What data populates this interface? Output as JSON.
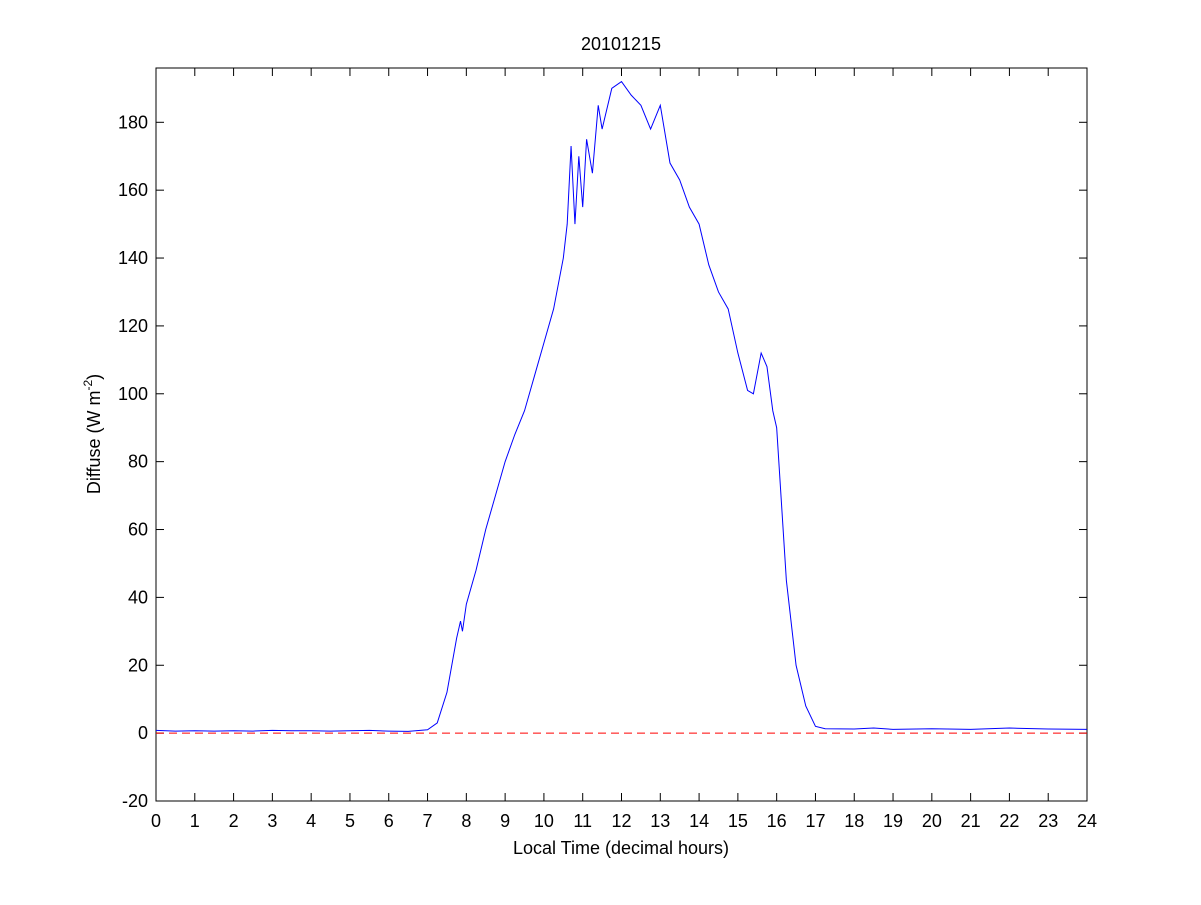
{
  "chart_data": {
    "type": "line",
    "title": "20101215",
    "xlabel": "Local Time (decimal hours)",
    "ylabel": {
      "text": "Diffuse (W m",
      "superscript": "-2",
      "suffix": ")"
    },
    "xlim": [
      0,
      24
    ],
    "ylim": [
      -20,
      196
    ],
    "xticks": [
      0,
      1,
      2,
      3,
      4,
      5,
      6,
      7,
      8,
      9,
      10,
      11,
      12,
      13,
      14,
      15,
      16,
      17,
      18,
      19,
      20,
      21,
      22,
      23,
      24
    ],
    "yticks": [
      -20,
      0,
      20,
      40,
      60,
      80,
      100,
      120,
      140,
      160,
      180
    ],
    "reference_line": {
      "value": 0,
      "color": "#ff0000",
      "style": "dashed"
    },
    "series": [
      {
        "name": "Diffuse",
        "color": "#0000ff",
        "x": [
          0,
          0.5,
          1,
          1.5,
          2,
          2.5,
          3,
          3.5,
          4,
          4.5,
          5,
          5.5,
          6,
          6.5,
          7,
          7.25,
          7.5,
          7.75,
          7.85,
          7.9,
          8,
          8.25,
          8.5,
          8.75,
          9,
          9.25,
          9.5,
          9.75,
          10,
          10.25,
          10.5,
          10.6,
          10.7,
          10.8,
          10.9,
          11,
          11.1,
          11.25,
          11.4,
          11.5,
          11.75,
          12,
          12.25,
          12.5,
          12.75,
          13,
          13.25,
          13.5,
          13.75,
          14,
          14.25,
          14.5,
          14.75,
          15,
          15.25,
          15.4,
          15.6,
          15.75,
          15.9,
          16,
          16.25,
          16.5,
          16.75,
          17,
          17.25,
          18,
          18.5,
          19,
          20,
          21,
          22,
          23,
          24
        ],
        "values": [
          0.8,
          0.6,
          0.7,
          0.6,
          0.7,
          0.6,
          0.8,
          0.7,
          0.7,
          0.6,
          0.7,
          0.8,
          0.6,
          0.5,
          1,
          3,
          12,
          28,
          33,
          30,
          38,
          48,
          60,
          70,
          80,
          88,
          95,
          105,
          115,
          125,
          140,
          150,
          173,
          150,
          170,
          155,
          175,
          165,
          185,
          178,
          190,
          192,
          188,
          185,
          178,
          185,
          168,
          163,
          155,
          150,
          138,
          130,
          125,
          112,
          101,
          100,
          112,
          108,
          95,
          90,
          45,
          20,
          8,
          2,
          1.3,
          1.2,
          1.5,
          1.1,
          1.3,
          1.1,
          1.5,
          1.2,
          1.1
        ]
      }
    ]
  }
}
